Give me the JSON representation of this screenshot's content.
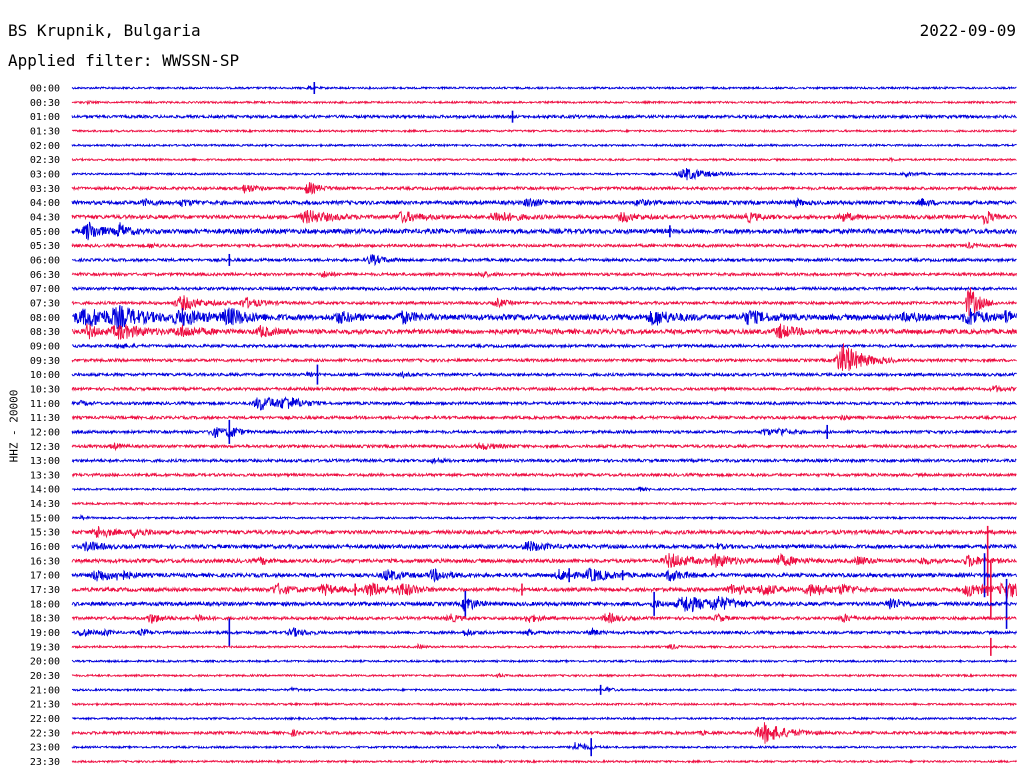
{
  "header": {
    "station": "BS Krupnik, Bulgaria",
    "date": "2022-09-09",
    "filter": "Applied filter: WWSSN-SP"
  },
  "colors": {
    "blue": "#0000dd",
    "red": "#ee1144"
  },
  "chart_data": {
    "type": "helicorder",
    "ylabel": "HHZ - 20000",
    "row_labels": [
      "00:00",
      "00:30",
      "01:00",
      "01:30",
      "02:00",
      "02:30",
      "03:00",
      "03:30",
      "04:00",
      "04:30",
      "05:00",
      "05:30",
      "06:00",
      "06:30",
      "07:00",
      "07:30",
      "08:00",
      "08:30",
      "09:00",
      "09:30",
      "10:00",
      "10:30",
      "11:00",
      "11:30",
      "12:00",
      "12:30",
      "13:00",
      "13:30",
      "14:00",
      "14:30",
      "15:00",
      "15:30",
      "16:00",
      "16:30",
      "17:00",
      "17:30",
      "18:00",
      "18:30",
      "19:00",
      "19:30",
      "20:00",
      "20:30",
      "21:00",
      "21:30",
      "22:00",
      "22:30",
      "23:00",
      "23:30"
    ],
    "row_minutes": 30,
    "noise_level": [
      1,
      1,
      2,
      1,
      1,
      1,
      1,
      2,
      3,
      3,
      4,
      2,
      2,
      2,
      2,
      2,
      5,
      4,
      2,
      2,
      2,
      2,
      2,
      2,
      2,
      2,
      2,
      2,
      1,
      1,
      1,
      3,
      3,
      3,
      3,
      3,
      3,
      2,
      2,
      1,
      1,
      1,
      1,
      1,
      1,
      2,
      1,
      1
    ],
    "events": [
      [
        0,
        7.5,
        2,
        0.3
      ],
      [
        1,
        0.5,
        1,
        0.3
      ],
      [
        2,
        16,
        1,
        0.3
      ],
      [
        5,
        26,
        1,
        0.3
      ],
      [
        6,
        19.5,
        6,
        1.4
      ],
      [
        6,
        26.5,
        2,
        0.6
      ],
      [
        7,
        5.5,
        5,
        0.6
      ],
      [
        7,
        7.5,
        6,
        0.7
      ],
      [
        8,
        2.3,
        3,
        0.6
      ],
      [
        8,
        3.5,
        3,
        0.7
      ],
      [
        8,
        14.5,
        4,
        0.8
      ],
      [
        8,
        18,
        3,
        0.6
      ],
      [
        8,
        23,
        3,
        0.5
      ],
      [
        8,
        27,
        3,
        0.6
      ],
      [
        9,
        7.5,
        6,
        1.5
      ],
      [
        9,
        10.5,
        5,
        1.2
      ],
      [
        9,
        13.5,
        5,
        1.3
      ],
      [
        9,
        17.5,
        4,
        0.9
      ],
      [
        9,
        21.5,
        4,
        0.8
      ],
      [
        9,
        24.5,
        4,
        0.7
      ],
      [
        9,
        29,
        9,
        0.4
      ],
      [
        10,
        0.5,
        9,
        0.8
      ],
      [
        10,
        1.5,
        7,
        0.6
      ],
      [
        11,
        2.5,
        2,
        0.5
      ],
      [
        11,
        28.5,
        2,
        0.5
      ],
      [
        12,
        9.5,
        5,
        0.8
      ],
      [
        13,
        8,
        3,
        0.5
      ],
      [
        13,
        13,
        3,
        0.5
      ],
      [
        15,
        3.5,
        7,
        1.2
      ],
      [
        15,
        5.5,
        5,
        1.0
      ],
      [
        15,
        13.5,
        4,
        0.6
      ],
      [
        15,
        28.5,
        16,
        0.7
      ],
      [
        16,
        0.5,
        8,
        2.5
      ],
      [
        16,
        1.5,
        7,
        1.4
      ],
      [
        16,
        3.5,
        7,
        1.6
      ],
      [
        16,
        5,
        7,
        1.4
      ],
      [
        16,
        8.5,
        5,
        1.0
      ],
      [
        16,
        10.5,
        5,
        1.0
      ],
      [
        16,
        18.5,
        7,
        1.2
      ],
      [
        16,
        21.5,
        6,
        1.2
      ],
      [
        16,
        26.5,
        4,
        0.8
      ],
      [
        16,
        28.5,
        8,
        1.0
      ],
      [
        16,
        29.7,
        6,
        0.7
      ],
      [
        17,
        0.5,
        7,
        0.6
      ],
      [
        17,
        1.5,
        7,
        1.5
      ],
      [
        17,
        3.5,
        5,
        1.2
      ],
      [
        17,
        6,
        5,
        0.8
      ],
      [
        17,
        22.5,
        6,
        1.0
      ],
      [
        18,
        1.5,
        2,
        0.7
      ],
      [
        19,
        24.5,
        16,
        1.3
      ],
      [
        20,
        7.5,
        3,
        0.3
      ],
      [
        20,
        10.5,
        2,
        0.4
      ],
      [
        21,
        29.3,
        3,
        0.6
      ],
      [
        22,
        0.3,
        2,
        0.4
      ],
      [
        22,
        6,
        7,
        1.4
      ],
      [
        22,
        6.8,
        5,
        1.0
      ],
      [
        23,
        24.5,
        2,
        0.4
      ],
      [
        24,
        4.5,
        5,
        0.8
      ],
      [
        24,
        5,
        6,
        0.5
      ],
      [
        24,
        22,
        3,
        0.7
      ],
      [
        24,
        22.5,
        3,
        0.7
      ],
      [
        25,
        1.3,
        3,
        0.5
      ],
      [
        25,
        13,
        3,
        1.0
      ],
      [
        26,
        11.5,
        2,
        0.6
      ],
      [
        28,
        18,
        2,
        0.4
      ],
      [
        30,
        0.3,
        2,
        0.3
      ],
      [
        31,
        0.8,
        6,
        0.8
      ],
      [
        31,
        2,
        5,
        0.7
      ],
      [
        32,
        0.5,
        5,
        0.8
      ],
      [
        32,
        14.5,
        5,
        1.0
      ],
      [
        32,
        20.5,
        2,
        0.4
      ],
      [
        33,
        6,
        3,
        0.6
      ],
      [
        33,
        19,
        7,
        1.2
      ],
      [
        33,
        20.5,
        6,
        1.1
      ],
      [
        33,
        22.5,
        5,
        1.2
      ],
      [
        33,
        25,
        4,
        0.7
      ],
      [
        33,
        27,
        3,
        0.6
      ],
      [
        33,
        28.5,
        5,
        1.0
      ],
      [
        34,
        0.8,
        6,
        1.0
      ],
      [
        34,
        1.5,
        4,
        0.7
      ],
      [
        34,
        10,
        5,
        1.0
      ],
      [
        34,
        11.5,
        5,
        1.0
      ],
      [
        34,
        15.5,
        5,
        0.8
      ],
      [
        34,
        16.5,
        6,
        1.2
      ],
      [
        34,
        19,
        5,
        1.0
      ],
      [
        35,
        6.5,
        5,
        1.0
      ],
      [
        35,
        8,
        5,
        0.9
      ],
      [
        35,
        9.5,
        6,
        1.3
      ],
      [
        35,
        10.5,
        5,
        1.0
      ],
      [
        35,
        21,
        5,
        1.0
      ],
      [
        35,
        22,
        5,
        1.0
      ],
      [
        35,
        23.5,
        6,
        1.2
      ],
      [
        35,
        24.5,
        4,
        0.8
      ],
      [
        35,
        28.5,
        7,
        1.0
      ],
      [
        35,
        29.7,
        8,
        1.3
      ],
      [
        36,
        12.5,
        8,
        0.6
      ],
      [
        36,
        18.5,
        3,
        0.6
      ],
      [
        36,
        19.5,
        8,
        1.5
      ],
      [
        36,
        20.5,
        5,
        1.3
      ],
      [
        36,
        26,
        6,
        0.7
      ],
      [
        37,
        2.5,
        5,
        0.7
      ],
      [
        37,
        4,
        4,
        0.5
      ],
      [
        37,
        12,
        4,
        0.6
      ],
      [
        37,
        14.5,
        4,
        0.7
      ],
      [
        37,
        17,
        5,
        0.8
      ],
      [
        37,
        20.5,
        4,
        0.5
      ],
      [
        37,
        24.5,
        4,
        0.6
      ],
      [
        38,
        0.3,
        4,
        0.7
      ],
      [
        38,
        1,
        3,
        0.4
      ],
      [
        38,
        2.2,
        3,
        0.5
      ],
      [
        38,
        7,
        4,
        0.8
      ],
      [
        38,
        12.5,
        3,
        0.6
      ],
      [
        38,
        14.5,
        3,
        0.4
      ],
      [
        38,
        16.5,
        4,
        0.4
      ],
      [
        39,
        11,
        2,
        0.3
      ],
      [
        39,
        19,
        3,
        0.4
      ],
      [
        41,
        13.5,
        2,
        0.3
      ],
      [
        42,
        7,
        2,
        0.3
      ],
      [
        42,
        17,
        3,
        0.3
      ],
      [
        45,
        7,
        3,
        0.3
      ],
      [
        45,
        20,
        2,
        0.3
      ],
      [
        45,
        22,
        10,
        1.4
      ],
      [
        46,
        13.5,
        2,
        0.3
      ],
      [
        46,
        16,
        5,
        0.7
      ]
    ],
    "spikes": [
      [
        0,
        7.7,
        6
      ],
      [
        2,
        14,
        6
      ],
      [
        10,
        19,
        6
      ],
      [
        12,
        5,
        6
      ],
      [
        20,
        7.8,
        10
      ],
      [
        24,
        5,
        12
      ],
      [
        24,
        24,
        7
      ],
      [
        33,
        29.1,
        35
      ],
      [
        34,
        15.8,
        7
      ],
      [
        34,
        17.5,
        5
      ],
      [
        34,
        29,
        22
      ],
      [
        35,
        9,
        6
      ],
      [
        35,
        14.3,
        6
      ],
      [
        35,
        29.2,
        30
      ],
      [
        36,
        12.5,
        13
      ],
      [
        36,
        18.5,
        12
      ],
      [
        36,
        29.7,
        25
      ],
      [
        38,
        5,
        14
      ],
      [
        39,
        29.2,
        9
      ],
      [
        42,
        16.8,
        5
      ],
      [
        46,
        16.5,
        9
      ]
    ]
  }
}
